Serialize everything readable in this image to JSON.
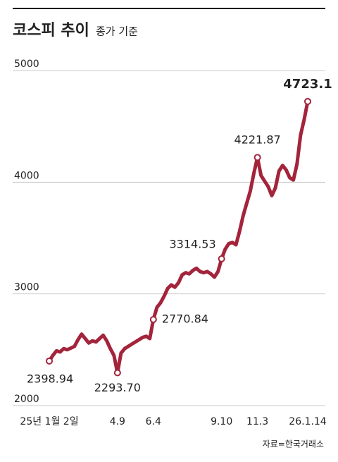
{
  "chart_data": {
    "type": "line",
    "title": "코스피 추이",
    "subtitle": "종가 기준",
    "source": "자료=한국거래소",
    "color": "#a3243b",
    "grid": true,
    "ylim": [
      2000,
      5000
    ],
    "yticks": [
      2000,
      3000,
      4000,
      5000
    ],
    "categories": [
      "25년 1월 2일",
      null,
      null,
      null,
      null,
      null,
      null,
      null,
      null,
      null,
      null,
      null,
      null,
      null,
      null,
      null,
      null,
      null,
      null,
      "4.9",
      null,
      null,
      null,
      null,
      null,
      null,
      null,
      null,
      null,
      "6.4",
      null,
      null,
      null,
      null,
      null,
      null,
      null,
      null,
      null,
      null,
      null,
      null,
      null,
      null,
      null,
      null,
      null,
      null,
      "9.10",
      null,
      null,
      null,
      null,
      null,
      null,
      null,
      null,
      null,
      "11.3",
      null,
      null,
      null,
      null,
      null,
      null,
      null,
      null,
      null,
      null,
      null,
      null,
      null,
      "26.1.14"
    ],
    "values": [
      2398.94,
      2450,
      2490,
      2480,
      2510,
      2500,
      2515,
      2530,
      2590,
      2640,
      2600,
      2560,
      2580,
      2570,
      2600,
      2630,
      2580,
      2510,
      2450,
      2293.7,
      2470,
      2510,
      2530,
      2550,
      2570,
      2590,
      2610,
      2620,
      2600,
      2770.84,
      2880,
      2920,
      2980,
      3050,
      3080,
      3060,
      3100,
      3170,
      3190,
      3180,
      3210,
      3230,
      3200,
      3190,
      3200,
      3180,
      3150,
      3200,
      3314.53,
      3400,
      3450,
      3460,
      3440,
      3560,
      3700,
      3810,
      3920,
      4080,
      4221.87,
      4060,
      4010,
      3960,
      3880,
      3950,
      4100,
      4150,
      4110,
      4040,
      4020,
      4160,
      4420,
      4560,
      4723.1
    ],
    "value_labels": [
      "2398.94",
      null,
      null,
      null,
      null,
      null,
      null,
      null,
      null,
      null,
      null,
      null,
      null,
      null,
      null,
      null,
      null,
      null,
      null,
      "2293.70",
      null,
      null,
      null,
      null,
      null,
      null,
      null,
      null,
      null,
      "2770.84",
      null,
      null,
      null,
      null,
      null,
      null,
      null,
      null,
      null,
      null,
      null,
      null,
      null,
      null,
      null,
      null,
      null,
      null,
      "3314.53",
      null,
      null,
      null,
      null,
      null,
      null,
      null,
      null,
      null,
      "4221.87",
      null,
      null,
      null,
      null,
      null,
      null,
      null,
      null,
      null,
      null,
      null,
      null,
      null,
      "4723.1"
    ]
  }
}
